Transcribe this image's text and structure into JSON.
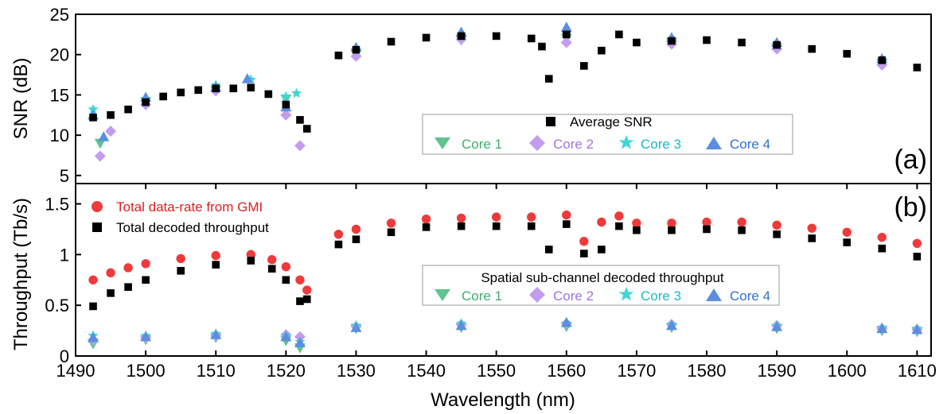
{
  "colors": {
    "average": "#000000",
    "core1": "#5fc48f",
    "core2": "#c39cf0",
    "core3": "#3fd6d6",
    "core4": "#5b8ee0",
    "gmi": "#ee3a3a",
    "decoded": "#000000"
  },
  "chart_data": [
    {
      "type": "scatter",
      "panel_label": "(a)",
      "xlabel": "",
      "ylabel": "SNR (dB)",
      "xlim": [
        1490,
        1612
      ],
      "ylim": [
        4,
        25
      ],
      "yticks": [
        5,
        10,
        15,
        20,
        25
      ],
      "legend": {
        "placement": "center-right",
        "first_row": "Average SNR",
        "second_row": [
          "Core 1",
          "Core 2",
          "Core 3",
          "Core 4"
        ]
      },
      "series": [
        {
          "name": "Average SNR",
          "marker": "square",
          "x": [
            1492.5,
            1495,
            1497.5,
            1500,
            1502.5,
            1505,
            1507.5,
            1510,
            1512.5,
            1515,
            1517.5,
            1520,
            1522,
            1523,
            1527.5,
            1530,
            1535,
            1540,
            1545,
            1550,
            1555,
            1556.5,
            1557.5,
            1560,
            1562.5,
            1565,
            1567.5,
            1570,
            1575,
            1580,
            1585,
            1590,
            1595,
            1600,
            1605,
            1610
          ],
          "y": [
            12.2,
            12.5,
            13.2,
            14.1,
            14.8,
            15.3,
            15.6,
            15.8,
            15.8,
            15.9,
            15.1,
            13.8,
            11.9,
            10.8,
            19.9,
            20.6,
            21.6,
            22.1,
            22.3,
            22.3,
            22.0,
            21.0,
            17.0,
            22.5,
            18.6,
            20.5,
            22.5,
            21.5,
            21.7,
            21.8,
            21.5,
            21.2,
            20.7,
            20.1,
            19.3,
            18.4
          ]
        },
        {
          "name": "Core 1",
          "marker": "triangle-down",
          "x": [
            1493.5,
            1500,
            1510,
            1520,
            1530,
            1545,
            1560,
            1575,
            1590,
            1605
          ],
          "y": [
            9.0,
            14.2,
            15.6,
            14.5,
            20.2,
            21.8,
            22.0,
            21.5,
            20.8,
            18.9
          ]
        },
        {
          "name": "Core 2",
          "marker": "diamond",
          "x": [
            1493.5,
            1495,
            1500,
            1510,
            1520,
            1522,
            1530,
            1545,
            1560,
            1575,
            1590,
            1605
          ],
          "y": [
            7.4,
            10.5,
            13.8,
            15.5,
            12.5,
            8.7,
            19.8,
            21.9,
            21.5,
            21.3,
            20.7,
            18.7
          ]
        },
        {
          "name": "Core 3",
          "marker": "star",
          "x": [
            1492.5,
            1500,
            1510,
            1515,
            1520,
            1521.5,
            1530,
            1545,
            1560,
            1575,
            1590,
            1605
          ],
          "y": [
            13.2,
            14.5,
            16.2,
            16.9,
            14.8,
            15.2,
            20.5,
            22.4,
            22.6,
            21.9,
            21.2,
            19.3
          ]
        },
        {
          "name": "Core 4",
          "marker": "triangle-up",
          "x": [
            1492.5,
            1494,
            1500,
            1510,
            1514.5,
            1520,
            1530,
            1545,
            1560,
            1575,
            1590,
            1605
          ],
          "y": [
            12.5,
            9.8,
            14.7,
            16.0,
            17.0,
            13.5,
            20.9,
            22.8,
            23.4,
            22.1,
            21.5,
            19.5
          ]
        }
      ]
    },
    {
      "type": "scatter",
      "panel_label": "(b)",
      "xlabel": "Wavelength (nm)",
      "ylabel": "Throughput (Tb/s)",
      "xlim": [
        1490,
        1612
      ],
      "ylim": [
        0,
        1.7
      ],
      "xticks": [
        1490,
        1500,
        1510,
        1520,
        1530,
        1540,
        1550,
        1560,
        1570,
        1580,
        1590,
        1600,
        1610
      ],
      "yticks": [
        0,
        0.5,
        1,
        1.5
      ],
      "ytick_labels": [
        "0",
        "0.5",
        "1",
        "1.5"
      ],
      "legend_top_left": [
        "Total data-rate from GMI",
        "Total decoded throughput"
      ],
      "legend_sub": {
        "title": "Spatial sub-channel decoded throughput",
        "entries": [
          "Core 1",
          "Core 2",
          "Core 3",
          "Core 4"
        ]
      },
      "series": [
        {
          "name": "Total data-rate from GMI",
          "marker": "circle",
          "x": [
            1492.5,
            1495,
            1497.5,
            1500,
            1505,
            1510,
            1515,
            1518,
            1520,
            1522,
            1523,
            1527.5,
            1530,
            1535,
            1540,
            1545,
            1550,
            1555,
            1560,
            1562.5,
            1565,
            1567.5,
            1570,
            1575,
            1580,
            1585,
            1590,
            1595,
            1600,
            1605,
            1610
          ],
          "y": [
            0.75,
            0.82,
            0.87,
            0.91,
            0.96,
            0.99,
            1.0,
            0.95,
            0.88,
            0.75,
            0.65,
            1.2,
            1.25,
            1.31,
            1.35,
            1.36,
            1.37,
            1.37,
            1.39,
            1.13,
            1.32,
            1.38,
            1.31,
            1.31,
            1.32,
            1.32,
            1.29,
            1.26,
            1.22,
            1.17,
            1.11
          ]
        },
        {
          "name": "Total decoded throughput",
          "marker": "square",
          "x": [
            1492.5,
            1495,
            1497.5,
            1500,
            1505,
            1510,
            1515,
            1518,
            1520,
            1522,
            1523,
            1527.5,
            1530,
            1535,
            1540,
            1545,
            1550,
            1555,
            1557.5,
            1560,
            1562.5,
            1565,
            1567.5,
            1570,
            1575,
            1580,
            1585,
            1590,
            1595,
            1600,
            1605,
            1610
          ],
          "y": [
            0.49,
            0.62,
            0.68,
            0.75,
            0.84,
            0.9,
            0.94,
            0.86,
            0.75,
            0.54,
            0.56,
            1.1,
            1.15,
            1.22,
            1.27,
            1.28,
            1.28,
            1.28,
            1.05,
            1.3,
            1.01,
            1.05,
            1.28,
            1.24,
            1.24,
            1.25,
            1.24,
            1.2,
            1.16,
            1.12,
            1.06,
            0.98
          ]
        },
        {
          "name": "Core 1",
          "marker": "triangle-down",
          "x": [
            1492.5,
            1500,
            1510,
            1520,
            1522,
            1530,
            1545,
            1560,
            1575,
            1590,
            1605,
            1610
          ],
          "y": [
            0.12,
            0.16,
            0.18,
            0.15,
            0.08,
            0.27,
            0.28,
            0.29,
            0.28,
            0.27,
            0.25,
            0.24
          ]
        },
        {
          "name": "Core 2",
          "marker": "diamond",
          "x": [
            1492.5,
            1500,
            1510,
            1520,
            1522,
            1530,
            1545,
            1560,
            1575,
            1590,
            1605,
            1610
          ],
          "y": [
            0.16,
            0.18,
            0.2,
            0.21,
            0.19,
            0.29,
            0.31,
            0.32,
            0.31,
            0.3,
            0.27,
            0.26
          ]
        },
        {
          "name": "Core 3",
          "marker": "star",
          "x": [
            1492.5,
            1500,
            1510,
            1520,
            1522,
            1530,
            1545,
            1560,
            1575,
            1590,
            1605,
            1610
          ],
          "y": [
            0.2,
            0.2,
            0.22,
            0.2,
            0.14,
            0.3,
            0.32,
            0.32,
            0.31,
            0.3,
            0.28,
            0.27
          ]
        },
        {
          "name": "Core 4",
          "marker": "triangle-up",
          "x": [
            1492.5,
            1500,
            1510,
            1520,
            1522,
            1530,
            1545,
            1560,
            1575,
            1590,
            1605,
            1610
          ],
          "y": [
            0.18,
            0.19,
            0.21,
            0.19,
            0.13,
            0.28,
            0.3,
            0.33,
            0.3,
            0.29,
            0.27,
            0.26
          ]
        }
      ]
    }
  ]
}
